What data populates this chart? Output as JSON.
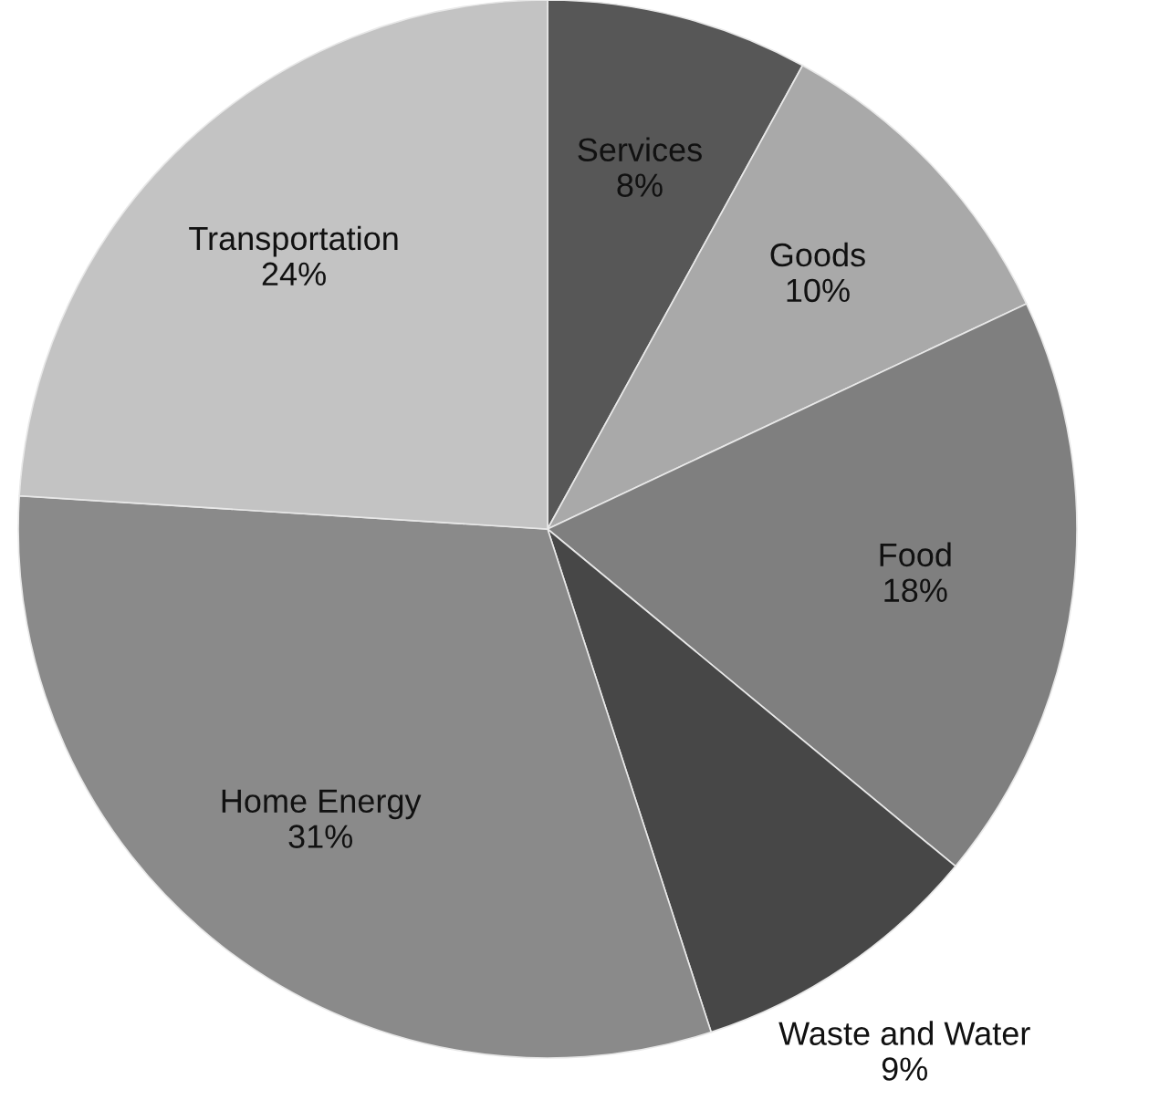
{
  "chart_data": {
    "type": "pie",
    "categories": [
      "Services",
      "Goods",
      "Food",
      "Waste and Water",
      "Home Energy",
      "Transportation"
    ],
    "values": [
      8,
      10,
      18,
      9,
      31,
      24
    ],
    "value_labels": [
      "8%",
      "10%",
      "18%",
      "9%",
      "31%",
      "24%"
    ],
    "colors": [
      "#575757",
      "#a9a9a9",
      "#7f7f7f",
      "#474747",
      "#8a8a8a",
      "#c3c3c3"
    ]
  }
}
